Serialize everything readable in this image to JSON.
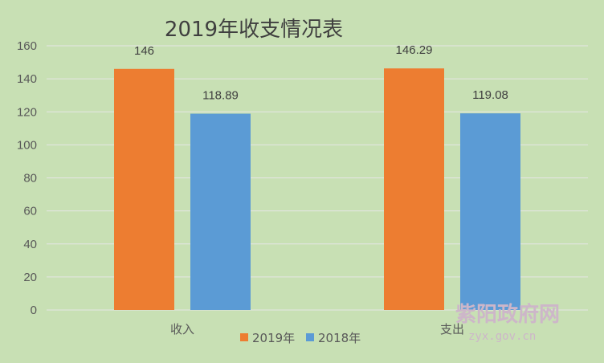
{
  "chart_data": {
    "type": "bar",
    "title": "2019年收支情况表",
    "categories": [
      "收入",
      "支出"
    ],
    "series": [
      {
        "name": "2019年",
        "values": [
          146,
          146.29
        ],
        "labels": [
          "146",
          "146.29"
        ],
        "color": "#ed7d31"
      },
      {
        "name": "2018年",
        "values": [
          118.89,
          119.08
        ],
        "labels": [
          "118.89",
          "119.08"
        ],
        "color": "#5b9bd5"
      }
    ],
    "y_ticks": [
      "0",
      "20",
      "40",
      "60",
      "80",
      "100",
      "120",
      "140",
      "160"
    ],
    "ylim": [
      0,
      160
    ],
    "xlabel": "",
    "ylabel": "",
    "grid": true,
    "legend_position": "bottom",
    "background": "#c8e0b4",
    "gridline_color": "#e6e6e6"
  },
  "watermark": {
    "site_name": "紫阳政府网",
    "url": "zyx.gov.cn"
  }
}
